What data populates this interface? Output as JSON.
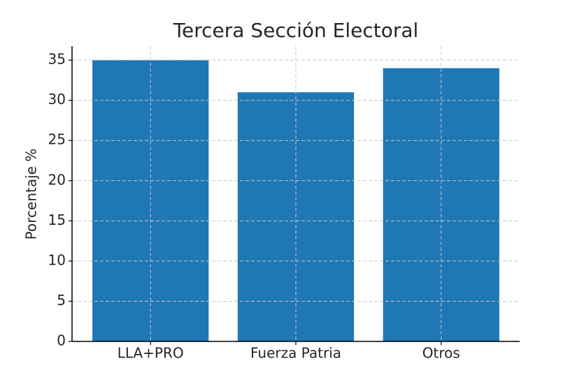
{
  "chart_data": {
    "type": "bar",
    "title": "Tercera Sección Electoral",
    "ylabel": "Porcentaje %",
    "categories": [
      "LLA+PRO",
      "Fuerza Patria",
      "Otros"
    ],
    "values": [
      35,
      31,
      34
    ],
    "color": "#1f77b4",
    "ylim": [
      0,
      36.75
    ],
    "yticks": [
      0,
      5,
      10,
      15,
      20,
      25,
      30,
      35
    ],
    "grid": true
  }
}
